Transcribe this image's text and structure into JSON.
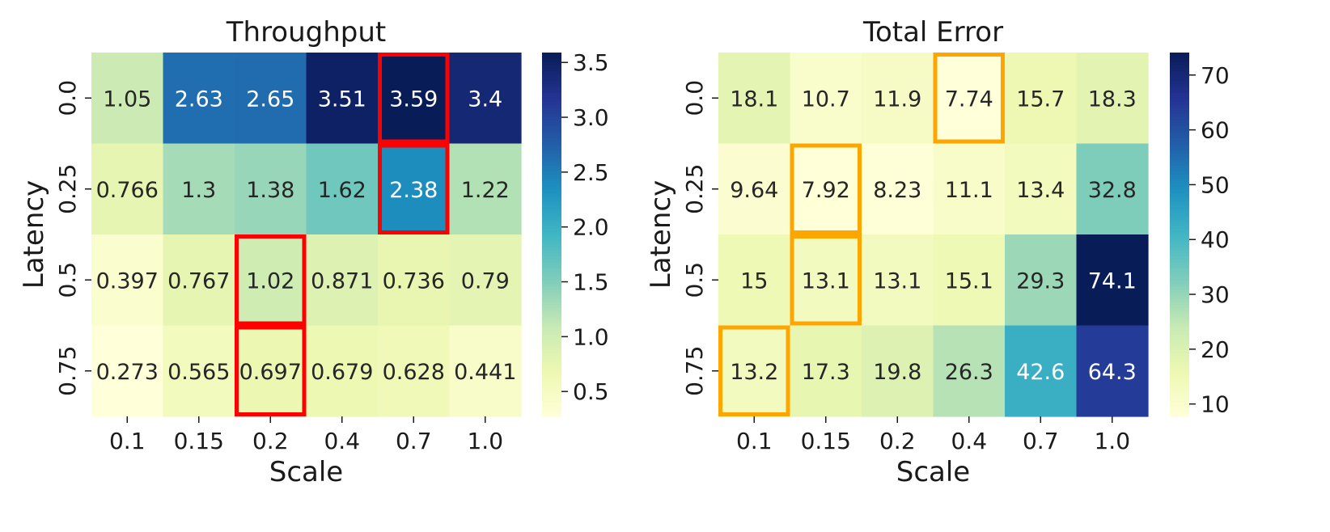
{
  "chart_data": [
    {
      "type": "heatmap",
      "title": "Throughput",
      "xlabel": "Scale",
      "ylabel": "Latency",
      "x_categories": [
        "0.1",
        "0.15",
        "0.2",
        "0.4",
        "0.7",
        "1.0"
      ],
      "y_categories": [
        "0.0",
        "0.25",
        "0.5",
        "0.75"
      ],
      "values": [
        [
          1.05,
          2.63,
          2.65,
          3.51,
          3.59,
          3.4
        ],
        [
          0.766,
          1.3,
          1.38,
          1.62,
          2.38,
          1.22
        ],
        [
          0.397,
          0.767,
          1.02,
          0.871,
          0.736,
          0.79
        ],
        [
          0.273,
          0.565,
          0.697,
          0.679,
          0.628,
          0.441
        ]
      ],
      "labels": [
        [
          "1.05",
          "2.63",
          "2.65",
          "3.51",
          "3.59",
          "3.4"
        ],
        [
          "0.766",
          "1.3",
          "1.38",
          "1.62",
          "2.38",
          "1.22"
        ],
        [
          "0.397",
          "0.767",
          "1.02",
          "0.871",
          "0.736",
          "0.79"
        ],
        [
          "0.273",
          "0.565",
          "0.697",
          "0.679",
          "0.628",
          "0.441"
        ]
      ],
      "vmin": 0.273,
      "vmax": 3.59,
      "colormap": "YlGnBu",
      "colorbar_ticks": [
        0.5,
        1.0,
        1.5,
        2.0,
        2.5,
        3.0,
        3.5
      ],
      "colorbar_tick_labels": [
        "0.5",
        "1.0",
        "1.5",
        "2.0",
        "2.5",
        "3.0",
        "3.5"
      ],
      "highlight_color": "#ff0000",
      "highlights": [
        {
          "row_start": 0,
          "row_end": 0,
          "col": 4
        },
        {
          "row_start": 1,
          "row_end": 1,
          "col": 4
        },
        {
          "row_start": 2,
          "row_end": 2,
          "col": 2
        },
        {
          "row_start": 3,
          "row_end": 3,
          "col": 2
        }
      ]
    },
    {
      "type": "heatmap",
      "title": "Total Error",
      "xlabel": "Scale",
      "ylabel": "Latency",
      "x_categories": [
        "0.1",
        "0.15",
        "0.2",
        "0.4",
        "0.7",
        "1.0"
      ],
      "y_categories": [
        "0.0",
        "0.25",
        "0.5",
        "0.75"
      ],
      "values": [
        [
          18.1,
          10.7,
          11.9,
          7.74,
          15.7,
          18.3
        ],
        [
          9.64,
          7.92,
          8.23,
          11.1,
          13.4,
          32.8
        ],
        [
          15,
          13.1,
          13.1,
          15.1,
          29.3,
          74.1
        ],
        [
          13.2,
          17.3,
          19.8,
          26.3,
          42.6,
          64.3
        ]
      ],
      "labels": [
        [
          "18.1",
          "10.7",
          "11.9",
          "7.74",
          "15.7",
          "18.3"
        ],
        [
          "9.64",
          "7.92",
          "8.23",
          "11.1",
          "13.4",
          "32.8"
        ],
        [
          "15",
          "13.1",
          "13.1",
          "15.1",
          "29.3",
          "74.1"
        ],
        [
          "13.2",
          "17.3",
          "19.8",
          "26.3",
          "42.6",
          "64.3"
        ]
      ],
      "vmin": 7.74,
      "vmax": 74.1,
      "colormap": "YlGnBu",
      "colorbar_ticks": [
        10,
        20,
        30,
        40,
        50,
        60,
        70
      ],
      "colorbar_tick_labels": [
        "10",
        "20",
        "30",
        "40",
        "50",
        "60",
        "70"
      ],
      "highlight_color": "#ffa500",
      "highlights": [
        {
          "row_start": 0,
          "row_end": 0,
          "col": 3
        },
        {
          "row_start": 1,
          "row_end": 1,
          "col": 1
        },
        {
          "row_start": 2,
          "row_end": 2,
          "col": 1
        },
        {
          "row_start": 3,
          "row_end": 3,
          "col": 0
        }
      ]
    }
  ]
}
